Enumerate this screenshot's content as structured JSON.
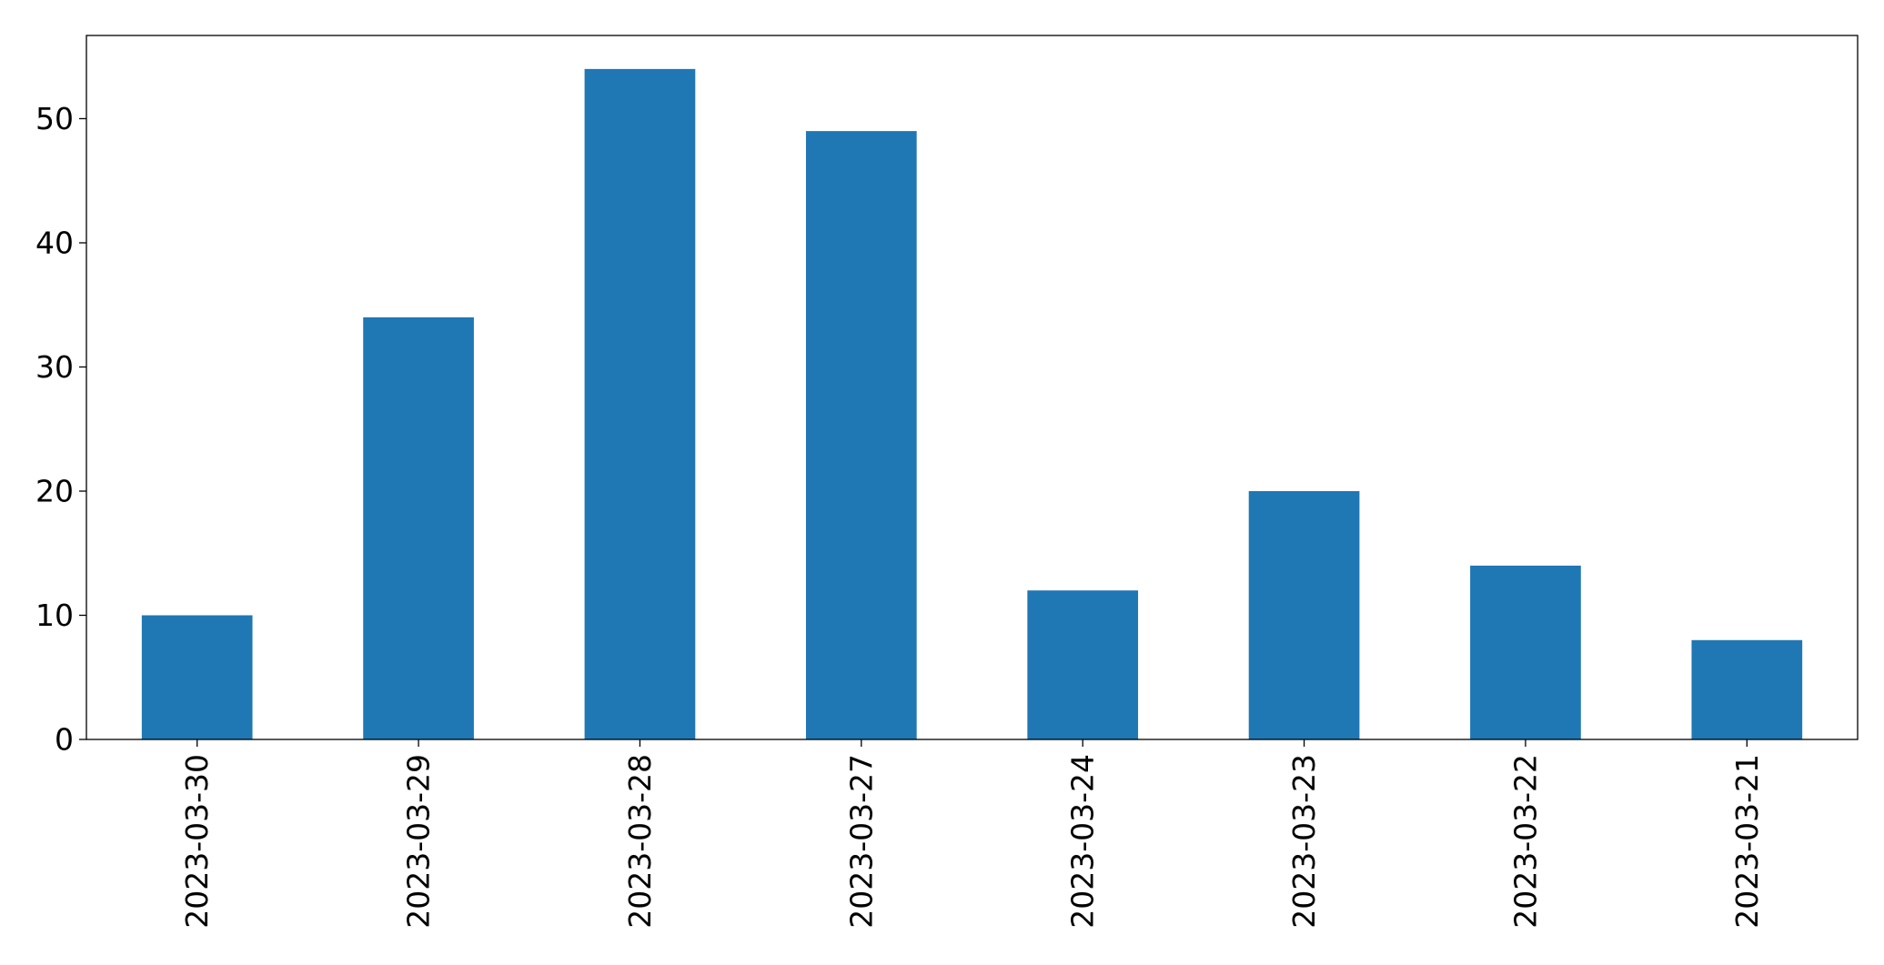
{
  "chart_data": {
    "type": "bar",
    "categories": [
      "2023-03-30",
      "2023-03-29",
      "2023-03-28",
      "2023-03-27",
      "2023-03-24",
      "2023-03-23",
      "2023-03-22",
      "2023-03-21"
    ],
    "values": [
      10,
      34,
      54,
      49,
      12,
      20,
      14,
      8
    ],
    "title": "",
    "xlabel": "",
    "ylabel": "",
    "ylim": [
      0,
      56.7
    ],
    "yticks": [
      0,
      10,
      20,
      30,
      40,
      50
    ],
    "grid": false,
    "bar_color": "#1f77b4"
  }
}
